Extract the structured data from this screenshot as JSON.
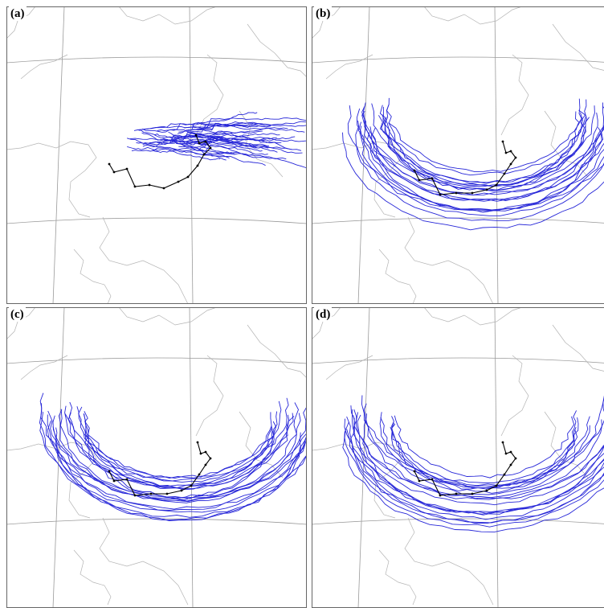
{
  "figure": {
    "panels": [
      {
        "id": "a",
        "label": "(a)",
        "members": 34,
        "spread": "low"
      },
      {
        "id": "b",
        "label": "(b)",
        "members": 22,
        "spread": "high"
      },
      {
        "id": "c",
        "label": "(c)",
        "members": 22,
        "spread": "high"
      },
      {
        "id": "d",
        "label": "(d)",
        "members": 22,
        "spread": "high"
      }
    ]
  },
  "colors": {
    "ensemble_track": "#2727d8",
    "observed_track": "#000000",
    "coastline": "#b4b4b4",
    "graticule": "#9a9a9a",
    "frame": "#666666",
    "background": "#ffffff"
  }
}
